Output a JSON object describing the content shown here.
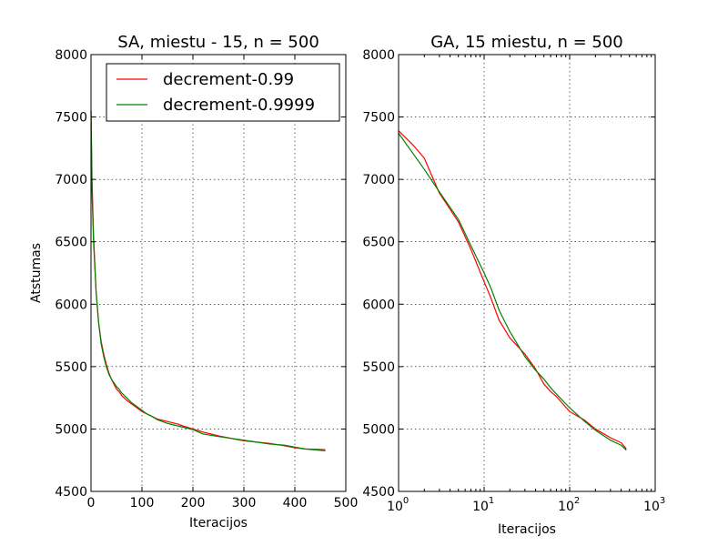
{
  "chart_data": [
    {
      "type": "line",
      "title": "SA, miestu - 15, n = 500",
      "xlabel": "Iteracijos",
      "ylabel": "Atstumas",
      "xscale": "linear",
      "xlim": [
        0,
        500
      ],
      "ylim": [
        4500,
        8000
      ],
      "xticks": [
        0,
        100,
        200,
        300,
        400,
        500
      ],
      "xtick_labels": [
        "0",
        "100",
        "200",
        "300",
        "400",
        "500"
      ],
      "yticks": [
        4500,
        5000,
        5500,
        6000,
        6500,
        7000,
        7500,
        8000
      ],
      "ytick_labels": [
        "4500",
        "5000",
        "5500",
        "6000",
        "6500",
        "7000",
        "7500",
        "8000"
      ],
      "grid": true,
      "legend": "top-right",
      "series": [
        {
          "name": "decrement-0.99",
          "color": "#ff0000",
          "x": [
            0,
            2,
            5,
            10,
            15,
            20,
            25,
            30,
            35,
            40,
            45,
            50,
            55,
            60,
            65,
            70,
            80,
            90,
            100,
            110,
            120,
            130,
            140,
            150,
            160,
            170,
            180,
            200,
            220,
            250,
            300,
            350,
            380,
            400,
            420,
            460
          ],
          "y": [
            7550,
            7000,
            6550,
            6100,
            5850,
            5700,
            5600,
            5520,
            5450,
            5400,
            5360,
            5320,
            5300,
            5270,
            5250,
            5230,
            5200,
            5170,
            5140,
            5120,
            5100,
            5080,
            5070,
            5060,
            5050,
            5040,
            5025,
            5000,
            4975,
            4945,
            4905,
            4885,
            4865,
            4850,
            4840,
            4835
          ]
        },
        {
          "name": "decrement-0.9999",
          "color": "#008000",
          "x": [
            0,
            2,
            5,
            10,
            15,
            20,
            25,
            30,
            35,
            40,
            45,
            50,
            55,
            60,
            65,
            70,
            80,
            90,
            100,
            110,
            120,
            130,
            140,
            150,
            160,
            170,
            180,
            200,
            220,
            250,
            300,
            350,
            380,
            400,
            420,
            460
          ],
          "y": [
            7550,
            6900,
            6500,
            6100,
            5850,
            5680,
            5580,
            5500,
            5440,
            5400,
            5370,
            5340,
            5320,
            5290,
            5270,
            5250,
            5210,
            5180,
            5150,
            5120,
            5100,
            5075,
            5060,
            5045,
            5035,
            5025,
            5015,
            4995,
            4960,
            4940,
            4910,
            4880,
            4870,
            4855,
            4840,
            4825
          ]
        }
      ]
    },
    {
      "type": "line",
      "title": "GA, 15 miestu, n = 500",
      "xlabel": "Iteracijos",
      "ylabel": "",
      "xscale": "log",
      "xlim": [
        1,
        1000
      ],
      "ylim": [
        4500,
        8000
      ],
      "xticks": [
        1,
        10,
        100,
        1000
      ],
      "xtick_labels": [
        {
          "base": "10",
          "exp": "0"
        },
        {
          "base": "10",
          "exp": "1"
        },
        {
          "base": "10",
          "exp": "2"
        },
        {
          "base": "10",
          "exp": "3"
        }
      ],
      "yticks": [
        4500,
        5000,
        5500,
        6000,
        6500,
        7000,
        7500,
        8000
      ],
      "ytick_labels": [
        "4500",
        "5000",
        "5500",
        "6000",
        "6500",
        "7000",
        "7500",
        "8000"
      ],
      "grid": true,
      "series": [
        {
          "name": "decrement-0.99",
          "color": "#ff0000",
          "x": [
            1,
            1.5,
            2,
            3,
            5,
            7,
            10,
            12,
            15,
            20,
            30,
            40,
            50,
            60,
            70,
            100,
            150,
            200,
            300,
            400,
            460
          ],
          "y": [
            7390,
            7270,
            7170,
            6890,
            6660,
            6440,
            6180,
            6050,
            5870,
            5730,
            5600,
            5480,
            5360,
            5300,
            5260,
            5140,
            5070,
            5000,
            4930,
            4890,
            4840
          ]
        },
        {
          "name": "decrement-0.9999",
          "color": "#008000",
          "x": [
            1,
            1.5,
            2,
            3,
            5,
            7,
            10,
            12,
            15,
            20,
            30,
            40,
            50,
            60,
            70,
            100,
            150,
            200,
            300,
            400,
            460
          ],
          "y": [
            7370,
            7200,
            7080,
            6900,
            6680,
            6470,
            6250,
            6130,
            5950,
            5780,
            5580,
            5470,
            5400,
            5330,
            5280,
            5170,
            5060,
            4990,
            4910,
            4870,
            4830
          ]
        }
      ]
    }
  ]
}
